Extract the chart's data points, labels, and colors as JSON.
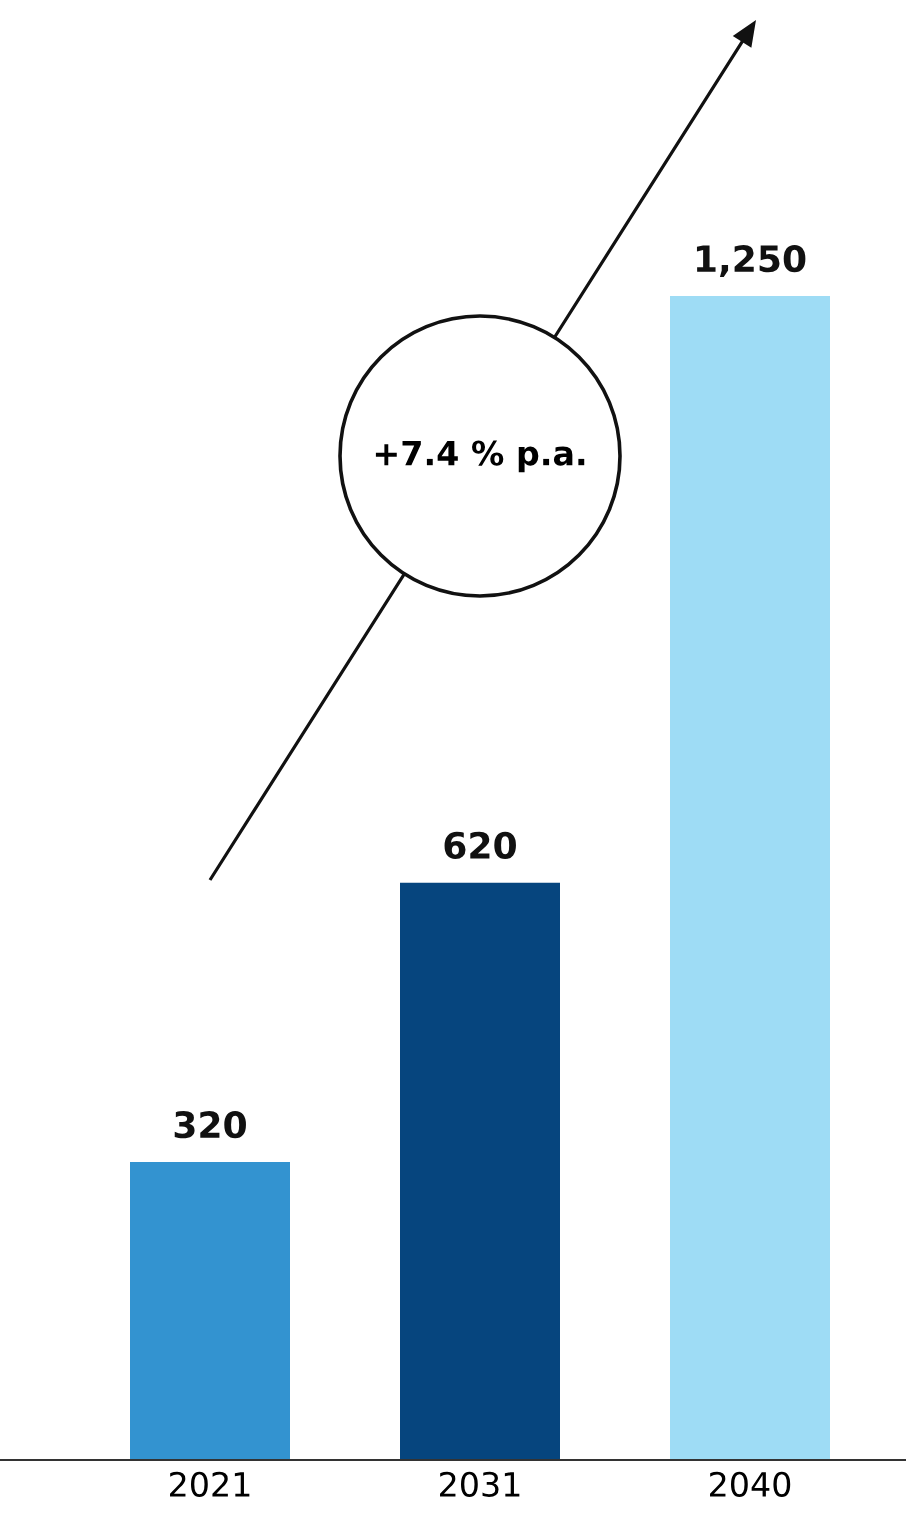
{
  "chart_data": {
    "type": "bar",
    "categories": [
      "2021",
      "2031",
      "2040"
    ],
    "values": [
      320,
      620,
      1250
    ],
    "colors": [
      "#3393d0",
      "#06457e",
      "#9edcf5"
    ],
    "value_labels": [
      "320",
      "620",
      "1,250"
    ],
    "annotations": [
      "+7.4 % p.a."
    ],
    "grid": false,
    "legend": false
  }
}
